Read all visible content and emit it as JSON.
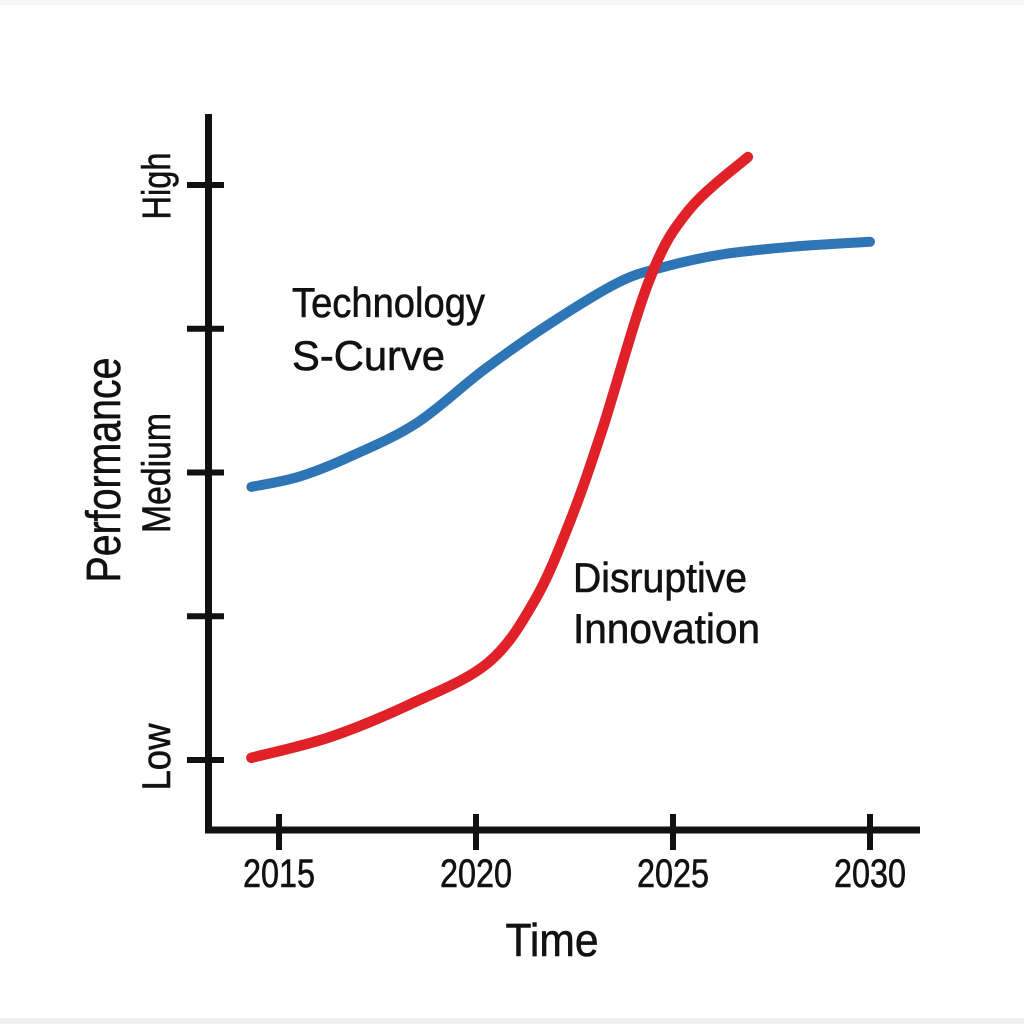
{
  "page": {
    "background": "#ffffff"
  },
  "chart_data": {
    "type": "line",
    "title": "",
    "xlabel": "Time",
    "ylabel": "Performance",
    "x_tick_labels": [
      "2015",
      "2020",
      "2025",
      "2030"
    ],
    "y_tick_labels": [
      "Low",
      "Medium",
      "High"
    ],
    "y_tick_count": 5,
    "x_range_years": [
      2013.7,
      2031.3
    ],
    "y_value_at_named_ticks": {
      "Low": 20,
      "Medium": 60,
      "High": 100
    },
    "grid": false,
    "legend": false,
    "axes_color": "#111111",
    "series": [
      {
        "name": "Technology S-Curve",
        "color": "#2E75B6",
        "annotation": {
          "line1": "Technology",
          "line2": "S-Curve"
        },
        "points_year_value": [
          [
            2014.3,
            58.0
          ],
          [
            2015.5,
            59.4
          ],
          [
            2016.8,
            62.2
          ],
          [
            2018.5,
            66.9
          ],
          [
            2020.2,
            74.3
          ],
          [
            2021.9,
            80.8
          ],
          [
            2023.6,
            86.4
          ],
          [
            2024.7,
            88.5
          ],
          [
            2026.2,
            90.3
          ],
          [
            2028.0,
            91.4
          ],
          [
            2030.0,
            92.1
          ]
        ]
      },
      {
        "name": "Disruptive Innovation",
        "color": "#E02228",
        "annotation": {
          "line1": "Disruptive",
          "line2": "Innovation"
        },
        "points_year_value": [
          [
            2014.3,
            20.3
          ],
          [
            2016.3,
            23.2
          ],
          [
            2018.3,
            27.7
          ],
          [
            2020.3,
            33.5
          ],
          [
            2021.5,
            42.3
          ],
          [
            2022.4,
            53.4
          ],
          [
            2023.2,
            65.9
          ],
          [
            2024.4,
            86.8
          ],
          [
            2025.4,
            96.5
          ],
          [
            2026.9,
            103.9
          ]
        ]
      }
    ]
  }
}
